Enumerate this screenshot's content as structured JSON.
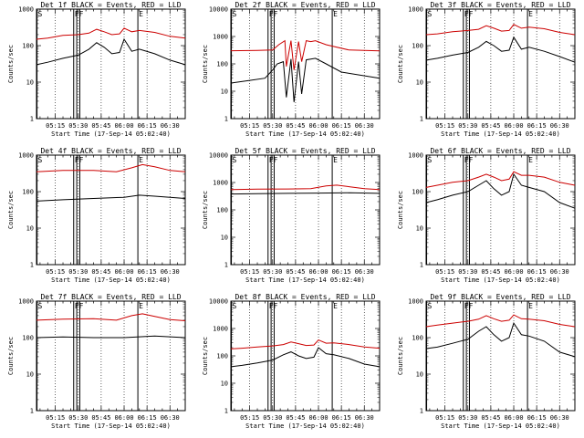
{
  "common": {
    "xlabel": "Start Time (17-Sep-14 05:02:40)",
    "ylabel": "Counts/sec",
    "x_tick_labels": [
      "05:15",
      "05:30",
      "05:45",
      "06:00",
      "06:15",
      "06:30"
    ],
    "y_tick_labels": [
      "1",
      "10",
      "100",
      "1000",
      "10000"
    ],
    "flag_labels": [
      "S",
      "FF",
      "E"
    ],
    "colors": {
      "events": "#000000",
      "lld": "#cc0000"
    }
  },
  "chart_data": [
    {
      "type": "line",
      "title": "Det 1f BLACK = Events, RED = LLD",
      "x_range": [
        "05:02:40",
        "06:40"
      ],
      "ylim": [
        1,
        1000
      ],
      "yscale": "log",
      "series": [
        {
          "color": "black",
          "x": [
            "05:02",
            "05:10",
            "05:20",
            "05:30",
            "05:37",
            "05:42",
            "05:47",
            "05:52",
            "05:57",
            "06:00",
            "06:05",
            "06:10",
            "06:20",
            "06:30",
            "06:40"
          ],
          "values": [
            30,
            35,
            45,
            55,
            80,
            120,
            90,
            60,
            65,
            150,
            70,
            80,
            60,
            40,
            30
          ]
        },
        {
          "color": "red",
          "x": [
            "05:02",
            "05:10",
            "05:20",
            "05:30",
            "05:37",
            "05:42",
            "05:47",
            "05:52",
            "05:57",
            "06:00",
            "06:05",
            "06:10",
            "06:20",
            "06:30",
            "06:40"
          ],
          "values": [
            150,
            160,
            190,
            200,
            220,
            280,
            240,
            200,
            210,
            300,
            240,
            260,
            230,
            180,
            160
          ]
        }
      ]
    },
    {
      "type": "line",
      "title": "Det 2f BLACK = Events, RED = LLD",
      "x_range": [
        "05:02:40",
        "06:40"
      ],
      "ylim": [
        1,
        10000
      ],
      "yscale": "log",
      "series": [
        {
          "color": "black",
          "x": [
            "05:02",
            "05:15",
            "05:25",
            "05:30",
            "05:33",
            "05:37",
            "05:39",
            "05:42",
            "05:44",
            "05:47",
            "05:49",
            "05:52",
            "05:55",
            "05:58",
            "06:05",
            "06:15",
            "06:40"
          ],
          "values": [
            20,
            25,
            30,
            60,
            100,
            120,
            6,
            150,
            4,
            120,
            8,
            140,
            150,
            160,
            100,
            50,
            30
          ]
        },
        {
          "color": "red",
          "x": [
            "05:02",
            "05:20",
            "05:30",
            "05:34",
            "05:38",
            "05:39",
            "05:42",
            "05:44",
            "05:47",
            "05:49",
            "05:52",
            "05:55",
            "05:58",
            "06:05",
            "06:20",
            "06:40"
          ],
          "values": [
            300,
            310,
            320,
            500,
            700,
            80,
            700,
            60,
            650,
            120,
            700,
            650,
            700,
            500,
            320,
            300
          ]
        }
      ]
    },
    {
      "type": "line",
      "title": "Det 3f BLACK = Events, RED = LLD",
      "x_range": [
        "05:02:40",
        "06:40"
      ],
      "ylim": [
        1,
        1000
      ],
      "yscale": "log",
      "series": [
        {
          "color": "black",
          "x": [
            "05:02",
            "05:10",
            "05:20",
            "05:30",
            "05:37",
            "05:42",
            "05:47",
            "05:52",
            "05:57",
            "06:00",
            "06:05",
            "06:10",
            "06:20",
            "06:30",
            "06:40"
          ],
          "values": [
            40,
            45,
            55,
            65,
            90,
            130,
            100,
            70,
            75,
            170,
            80,
            90,
            70,
            50,
            35
          ]
        },
        {
          "color": "red",
          "x": [
            "05:02",
            "05:10",
            "05:20",
            "05:30",
            "05:37",
            "05:42",
            "05:47",
            "05:52",
            "05:57",
            "06:00",
            "06:05",
            "06:10",
            "06:20",
            "06:30",
            "06:40"
          ],
          "values": [
            200,
            210,
            240,
            260,
            280,
            350,
            300,
            250,
            260,
            380,
            300,
            320,
            290,
            230,
            200
          ]
        }
      ]
    },
    {
      "type": "line",
      "title": "Det 4f BLACK = Events, RED = LLD",
      "x_range": [
        "05:02:40",
        "06:40"
      ],
      "ylim": [
        1,
        1000
      ],
      "yscale": "log",
      "series": [
        {
          "color": "black",
          "x": [
            "05:02",
            "05:20",
            "05:40",
            "06:00",
            "06:10",
            "06:20",
            "06:40"
          ],
          "values": [
            55,
            60,
            65,
            70,
            80,
            75,
            65
          ]
        },
        {
          "color": "red",
          "x": [
            "05:02",
            "05:20",
            "05:40",
            "05:55",
            "06:05",
            "06:12",
            "06:20",
            "06:30",
            "06:40"
          ],
          "values": [
            350,
            380,
            380,
            350,
            450,
            550,
            480,
            380,
            350
          ]
        }
      ]
    },
    {
      "type": "line",
      "title": "Det 5f BLACK = Events, RED = LLD",
      "x_range": [
        "05:02:40",
        "06:40"
      ],
      "ylim": [
        1,
        10000
      ],
      "yscale": "log",
      "series": [
        {
          "color": "black",
          "x": [
            "05:02",
            "05:20",
            "05:40",
            "06:00",
            "06:20",
            "06:40"
          ],
          "values": [
            380,
            390,
            400,
            410,
            420,
            400
          ]
        },
        {
          "color": "red",
          "x": [
            "05:02",
            "05:20",
            "05:40",
            "05:55",
            "06:05",
            "06:12",
            "06:20",
            "06:30",
            "06:40"
          ],
          "values": [
            550,
            570,
            580,
            600,
            750,
            800,
            700,
            600,
            550
          ]
        }
      ]
    },
    {
      "type": "line",
      "title": "Det 6f BLACK = Events, RED = LLD",
      "x_range": [
        "05:02:40",
        "06:40"
      ],
      "ylim": [
        1,
        1000
      ],
      "yscale": "log",
      "series": [
        {
          "color": "black",
          "x": [
            "05:02",
            "05:10",
            "05:20",
            "05:30",
            "05:37",
            "05:42",
            "05:47",
            "05:52",
            "05:57",
            "06:00",
            "06:05",
            "06:10",
            "06:20",
            "06:30",
            "06:40"
          ],
          "values": [
            50,
            60,
            80,
            100,
            150,
            200,
            120,
            80,
            100,
            300,
            150,
            130,
            100,
            50,
            35
          ]
        },
        {
          "color": "red",
          "x": [
            "05:02",
            "05:10",
            "05:20",
            "05:30",
            "05:37",
            "05:42",
            "05:47",
            "05:52",
            "05:57",
            "06:00",
            "06:05",
            "06:10",
            "06:20",
            "06:30",
            "06:40"
          ],
          "values": [
            130,
            150,
            180,
            200,
            250,
            300,
            250,
            200,
            220,
            350,
            280,
            280,
            250,
            180,
            150
          ]
        }
      ]
    },
    {
      "type": "line",
      "title": "Det 7f BLACK = Events, RED = LLD",
      "x_range": [
        "05:02:40",
        "06:40"
      ],
      "ylim": [
        1,
        1000
      ],
      "yscale": "log",
      "series": [
        {
          "color": "black",
          "x": [
            "05:02",
            "05:20",
            "05:40",
            "06:00",
            "06:20",
            "06:40"
          ],
          "values": [
            100,
            105,
            100,
            100,
            110,
            100
          ]
        },
        {
          "color": "red",
          "x": [
            "05:02",
            "05:20",
            "05:40",
            "05:55",
            "06:05",
            "06:12",
            "06:20",
            "06:30",
            "06:40"
          ],
          "values": [
            300,
            320,
            330,
            300,
            400,
            450,
            380,
            310,
            290
          ]
        }
      ]
    },
    {
      "type": "line",
      "title": "Det 8f BLACK = Events, RED = LLD",
      "x_range": [
        "05:02:40",
        "06:40"
      ],
      "ylim": [
        1,
        10000
      ],
      "yscale": "log",
      "series": [
        {
          "color": "black",
          "x": [
            "05:02",
            "05:10",
            "05:20",
            "05:30",
            "05:37",
            "05:42",
            "05:47",
            "05:52",
            "05:57",
            "06:00",
            "06:05",
            "06:10",
            "06:20",
            "06:30",
            "06:40"
          ],
          "values": [
            40,
            45,
            55,
            70,
            110,
            140,
            100,
            80,
            90,
            200,
            120,
            110,
            80,
            50,
            40
          ]
        },
        {
          "color": "red",
          "x": [
            "05:02",
            "05:10",
            "05:20",
            "05:30",
            "05:37",
            "05:42",
            "05:47",
            "05:52",
            "05:57",
            "06:00",
            "06:05",
            "06:10",
            "06:20",
            "06:30",
            "06:40"
          ],
          "values": [
            180,
            190,
            210,
            230,
            260,
            320,
            280,
            240,
            250,
            380,
            290,
            300,
            260,
            210,
            190
          ]
        }
      ]
    },
    {
      "type": "line",
      "title": "Det 9f BLACK = Events, RED = LLD",
      "x_range": [
        "05:02:40",
        "06:40"
      ],
      "ylim": [
        1,
        1000
      ],
      "yscale": "log",
      "series": [
        {
          "color": "black",
          "x": [
            "05:02",
            "05:10",
            "05:20",
            "05:30",
            "05:37",
            "05:42",
            "05:47",
            "05:52",
            "05:57",
            "06:00",
            "06:05",
            "06:10",
            "06:20",
            "06:30",
            "06:40"
          ],
          "values": [
            50,
            55,
            70,
            90,
            150,
            200,
            120,
            80,
            100,
            250,
            120,
            110,
            80,
            40,
            30
          ]
        },
        {
          "color": "red",
          "x": [
            "05:02",
            "05:10",
            "05:20",
            "05:30",
            "05:37",
            "05:42",
            "05:47",
            "05:52",
            "05:57",
            "06:00",
            "06:05",
            "06:10",
            "06:20",
            "06:30",
            "06:40"
          ],
          "values": [
            200,
            220,
            250,
            280,
            320,
            400,
            330,
            280,
            300,
            420,
            330,
            320,
            290,
            230,
            200
          ]
        }
      ]
    }
  ]
}
